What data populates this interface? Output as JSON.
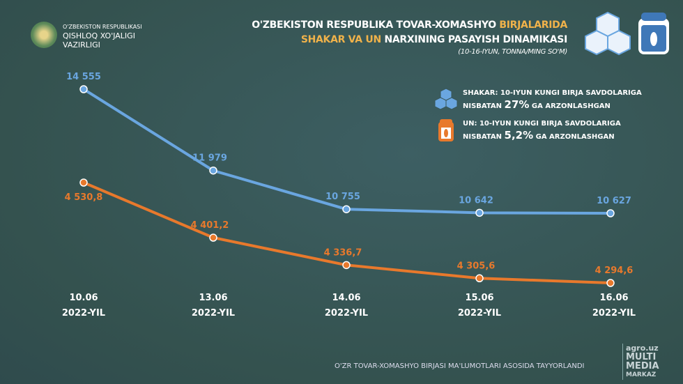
{
  "header": {
    "org_line1": "O'ZBEKISTON RESPUBLIKASI",
    "org_line2": "QISHLOQ XO'JALIGI",
    "org_line3": "VAZIRLIGI",
    "title_part1": "O'ZBEKISTON RESPUBLIKA TOVAR-XOMASHYO ",
    "title_part2": "BIRJALARIDA",
    "title_part3": "SHAKAR VA UN",
    "title_part4": " NARXINING PASAYISH DINAMIKASI",
    "subtitle": "(10-16-IYUN, TONNA/MING SO'M)"
  },
  "legend": [
    {
      "prefix": "SHAKAR: 10-IYUN KUNGI BIRJA SAVDOLARIGA",
      "pre": "NISBATAN ",
      "pct": "27%",
      "post": " GA ARZONLASHGAN",
      "icon": "sugar-cubes-icon"
    },
    {
      "prefix": "UN: 10-IYUN KUNGI BIRJA SAVDOLARIGA",
      "pre": "NISBATAN ",
      "pct": "5,2%",
      "post": " GA ARZONLASHGAN",
      "icon": "flour-sack-icon"
    }
  ],
  "footer": {
    "source": "O'ZR TOVAR-XOMASHYO BIRJASI MA'LUMOTLARI ASOSIDA TAYYORLANDI",
    "brand1": "agro.uz",
    "brand2": "MULTI",
    "brand3": "MEDIA",
    "brand4": "MARKAZ"
  },
  "chart_data": {
    "type": "line",
    "categories": [
      [
        "10.06",
        "2022-YIL"
      ],
      [
        "13.06",
        "2022-YIL"
      ],
      [
        "14.06",
        "2022-YIL"
      ],
      [
        "15.06",
        "2022-YIL"
      ],
      [
        "16.06",
        "2022-YIL"
      ]
    ],
    "series": [
      {
        "name": "SHAKAR",
        "color": "#6aa6e0",
        "values": [
          14555,
          11979,
          10755,
          10642,
          10627
        ],
        "labels": [
          "14 555",
          "11 979",
          "10 755",
          "10 642",
          "10 627"
        ]
      },
      {
        "name": "UN",
        "color": "#e8792c",
        "values": [
          4530.8,
          4401.2,
          4336.7,
          4305.6,
          4294.6
        ],
        "labels": [
          "4 530,8",
          "4 401,2",
          "4 336,7",
          "4 305,6",
          "4 294,6"
        ]
      }
    ],
    "grid": false
  }
}
